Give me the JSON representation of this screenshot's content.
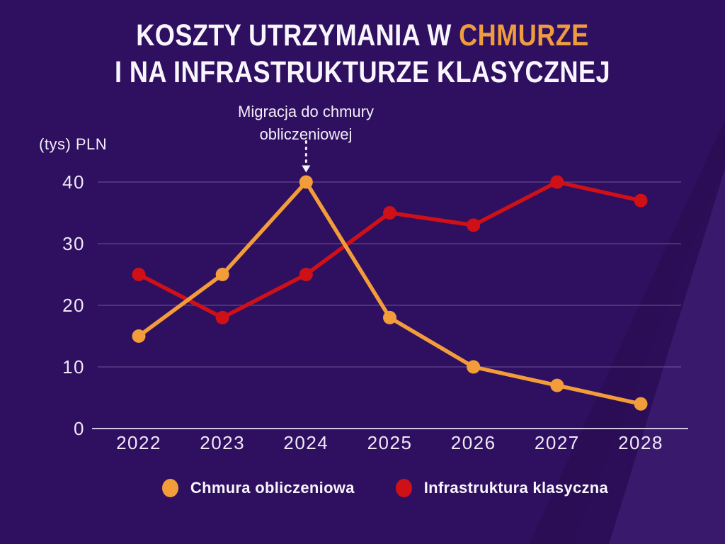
{
  "page": {
    "title_line1_white": "KOSZTY UTRZYMANIA W ",
    "title_line1_accent": "CHMURZE",
    "title_line2": "I NA INFRASTRUKTURZE KLASYCZNEJ"
  },
  "colors": {
    "background": "#2F1060",
    "background_light_shape": "#38196C",
    "background_dark_shape": "#2A0D55",
    "title_text": "#F8F5FC",
    "title_accent": "#EE9C3E",
    "tick_text": "#EFE9F7",
    "grid_line": "rgba(225,218,245,0.28)",
    "axis_line": "rgba(238,233,252,0.85)",
    "annotation_arrow": "#F5F2FA",
    "series_cloud": "#F29C3A",
    "series_classic": "#CF1117"
  },
  "y_unit_label": "(tys) PLN",
  "annotation": {
    "line1": "Migracja do chmury",
    "line2": "obliczeniowej"
  },
  "legend": {
    "items": [
      {
        "label": "Chmura obliczeniowa",
        "color": "#F29C3A"
      },
      {
        "label": "Infrastruktura klasyczna",
        "color": "#CF1117"
      }
    ]
  },
  "chart_data": {
    "type": "line",
    "title": "Koszty utrzymania w chmurze i na infrastrukturze klasycznej",
    "ylabel": "(tys) PLN",
    "categories": [
      "2022",
      "2023",
      "2024",
      "2025",
      "2026",
      "2027",
      "2028"
    ],
    "series": [
      {
        "name": "Infrastruktura klasyczna",
        "color": "#CF1117",
        "values": [
          25,
          18,
          25,
          35,
          33,
          40,
          37
        ]
      },
      {
        "name": "Chmura obliczeniowa",
        "color": "#F29C3A",
        "values": [
          15,
          25,
          40,
          18,
          10,
          7,
          4
        ]
      }
    ],
    "ylim": [
      0,
      40
    ],
    "yticks": [
      0,
      10,
      20,
      30,
      40
    ],
    "grid": true,
    "legend_position": "bottom",
    "annotation": {
      "text": "Migracja do chmury obliczeniowej",
      "target_series": "Chmura obliczeniowa",
      "target_category": "2024",
      "target_value": 40
    }
  }
}
